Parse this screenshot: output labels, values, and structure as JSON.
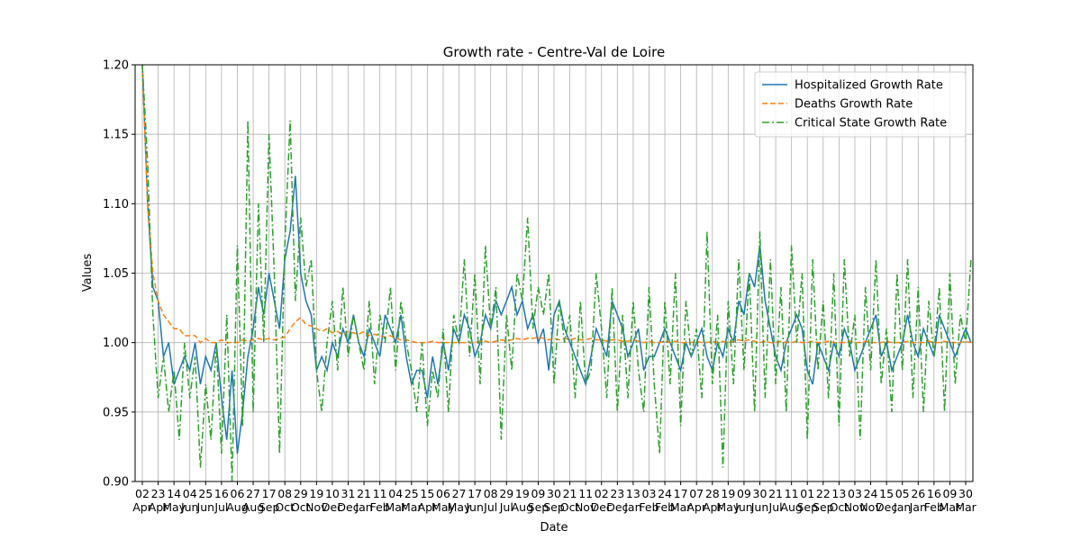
{
  "chart_data": {
    "type": "line",
    "title": "Growth rate - Centre-Val de Loire",
    "xlabel": "Date",
    "ylabel": "Values",
    "ylim": [
      0.9,
      1.2
    ],
    "yticks": [
      {
        "value": 0.9,
        "label": "0.90"
      },
      0.95,
      {
        "value": 1.0,
        "label": "1.00"
      },
      1.05,
      {
        "value": 1.1,
        "label": "1.10"
      },
      1.15,
      {
        "value": 1.2,
        "label": "1.20"
      }
    ],
    "grid": true,
    "legend": "upper right",
    "categories": [
      "02\nApr",
      null,
      null,
      "23\nApr",
      null,
      null,
      "14\nMay",
      null,
      null,
      "04\nJun",
      null,
      null,
      "25\nJun",
      null,
      null,
      "16\nJul",
      null,
      null,
      "06\nAug",
      null,
      null,
      "27\nAug",
      null,
      null,
      "17\nSep",
      null,
      null,
      "08\nOct",
      null,
      null,
      "29\nOct",
      null,
      null,
      "19\nNov",
      null,
      null,
      "10\nDec",
      null,
      null,
      "31\nDec",
      null,
      null,
      "21\nJan",
      null,
      null,
      "11\nFeb",
      null,
      null,
      "04\nMar",
      null,
      null,
      "25\nMar",
      null,
      null,
      "15\nApr",
      null,
      null,
      "06\nMay",
      null,
      null,
      "27\nMay",
      null,
      null,
      "17\nJun",
      null,
      null,
      "08\nJul",
      null,
      null,
      "29\nJul",
      null,
      null,
      "19\nAug",
      null,
      null,
      "09\nSep",
      null,
      null,
      "30\nSep",
      null,
      null,
      "21\nOct",
      null,
      null,
      "11\nNov",
      null,
      null,
      "02\nDec",
      null,
      null,
      "23\nDec",
      null,
      null,
      "13\nJan",
      null,
      null,
      "03\nFeb",
      null,
      null,
      "24\nFeb",
      null,
      null,
      "17\nMar",
      null,
      null,
      "07\nApr",
      null,
      null,
      "28\nApr",
      null,
      null,
      "19\nMay",
      null,
      null,
      "09\nJun",
      null,
      null,
      "30\nJun",
      null,
      null,
      "21\nJul",
      null,
      null,
      "11\nAug",
      null,
      null,
      "01\nSep",
      null,
      null,
      "22\nSep",
      null,
      null,
      "13\nOct",
      null,
      null,
      "03\nNov",
      null,
      null,
      "24\nNov",
      null,
      null,
      "15\nDec",
      null,
      null,
      "05\nJan",
      null,
      null,
      "26\nJan",
      null,
      null,
      "16\nFeb",
      null,
      null,
      "09\nMar",
      null,
      null,
      "30\nMar",
      null
    ],
    "series": [
      {
        "name": "Hospitalized Growth Rate",
        "color": "#1f77b4",
        "style": "solid",
        "values": [
          1.2,
          1.1,
          1.04,
          1.03,
          0.99,
          1.0,
          0.97,
          0.98,
          0.99,
          0.98,
          1.0,
          0.97,
          0.99,
          0.98,
          1.0,
          0.96,
          0.93,
          0.98,
          0.92,
          0.95,
          0.99,
          1.01,
          1.04,
          1.02,
          1.05,
          1.03,
          1.01,
          1.06,
          1.08,
          1.12,
          1.05,
          1.03,
          1.02,
          0.98,
          0.99,
          0.98,
          1.0,
          0.99,
          1.01,
          1.0,
          1.02,
          1.0,
          0.99,
          1.01,
          1.0,
          0.99,
          1.02,
          1.01,
          1.0,
          1.02,
          0.99,
          0.97,
          0.98,
          0.98,
          0.96,
          0.99,
          0.97,
          1.0,
          0.98,
          1.01,
          1.0,
          1.02,
          1.01,
          0.99,
          1.0,
          1.02,
          1.01,
          1.03,
          1.02,
          1.03,
          1.04,
          1.02,
          1.03,
          1.01,
          1.02,
          1.0,
          1.01,
          0.98,
          1.02,
          1.03,
          1.01,
          1.0,
          0.99,
          0.98,
          0.97,
          0.99,
          1.01,
          1.0,
          0.99,
          1.03,
          1.02,
          1.01,
          0.99,
          1.0,
          1.01,
          0.98,
          0.99,
          0.99,
          1.0,
          1.01,
          1.0,
          0.99,
          0.98,
          1.0,
          0.99,
          1.0,
          1.01,
          0.99,
          0.98,
          1.0,
          0.99,
          1.01,
          1.0,
          1.03,
          1.02,
          1.05,
          1.04,
          1.07,
          1.03,
          1.01,
          0.99,
          0.98,
          1.0,
          1.01,
          1.02,
          1.01,
          0.98,
          0.97,
          1.0,
          0.99,
          0.98,
          1.0,
          0.99,
          1.01,
          1.0,
          0.98,
          0.99,
          1.0,
          1.01,
          1.02,
          0.99,
          1.0,
          0.98,
          0.99,
          1.0,
          1.02,
          1.0,
          0.99,
          1.01,
          1.0,
          0.99,
          1.02,
          1.01,
          1.0,
          0.99,
          1.0,
          1.01,
          1.0
        ]
      },
      {
        "name": "Deaths Growth Rate",
        "color": "#ff7f0e",
        "style": "dashed",
        "values": [
          1.2,
          1.1,
          1.05,
          1.03,
          1.02,
          1.015,
          1.01,
          1.01,
          1.005,
          1.005,
          1.005,
          1.0,
          1.003,
          1.0,
          1.0,
          1.002,
          1.0,
          1.0,
          1.0,
          1.002,
          1.001,
          1.002,
          1.003,
          1.002,
          1.003,
          1.002,
          1.003,
          1.004,
          1.01,
          1.015,
          1.018,
          1.013,
          1.012,
          1.01,
          1.008,
          1.01,
          1.007,
          1.008,
          1.006,
          1.008,
          1.007,
          1.006,
          1.008,
          1.005,
          1.006,
          1.005,
          1.004,
          1.005,
          1.003,
          1.002,
          1.002,
          1.001,
          1.0,
          1.0,
          1.0,
          1.001,
          1.0,
          1.0,
          1.0,
          1.0,
          1.0,
          1.0,
          1.0,
          1.0,
          1.001,
          1.001,
          1.0,
          1.001,
          1.002,
          1.001,
          1.002,
          1.003,
          1.002,
          1.003,
          1.003,
          1.004,
          1.003,
          1.002,
          1.003,
          1.002,
          1.003,
          1.002,
          1.003,
          1.002,
          1.002,
          1.003,
          1.002,
          1.002,
          1.001,
          1.002,
          1.002,
          1.001,
          1.001,
          1.002,
          1.001,
          1.0,
          1.001,
          1.0,
          1.0,
          1.001,
          1.0,
          1.001,
          1.0,
          1.0,
          1.0,
          1.001,
          1.0,
          1.0,
          1.001,
          1.0,
          1.001,
          1.0,
          1.001,
          1.002,
          1.001,
          1.002,
          1.001,
          1.0,
          1.001,
          1.0,
          1.0,
          1.001,
          1.0,
          1.0,
          1.001,
          1.0,
          1.0,
          1.001,
          1.0,
          1.0,
          1.001,
          1.0,
          1.0,
          1.0,
          1.001,
          1.0,
          1.0,
          1.001,
          1.0,
          1.0,
          1.0,
          1.001,
          1.0,
          1.0,
          1.0,
          1.001,
          1.0,
          1.0,
          1.0,
          1.001,
          1.0,
          1.0,
          1.001,
          1.0,
          1.0,
          1.0,
          1.001,
          1.0
        ]
      },
      {
        "name": "Critical State Growth Rate",
        "color": "#2ca02c",
        "style": "dashdot",
        "values": [
          1.2,
          1.13,
          1.02,
          0.96,
          0.99,
          0.95,
          0.98,
          0.93,
          1.0,
          0.96,
          0.99,
          0.91,
          0.97,
          0.93,
          1.0,
          0.92,
          1.02,
          0.9,
          1.07,
          0.94,
          1.16,
          0.95,
          1.1,
          1.0,
          1.15,
          1.05,
          0.92,
          1.07,
          1.16,
          1.03,
          1.09,
          1.04,
          1.06,
          0.98,
          0.95,
          1.0,
          1.03,
          0.98,
          1.04,
          0.99,
          1.02,
          1.0,
          0.98,
          1.03,
          0.97,
          1.02,
          1.0,
          1.04,
          0.98,
          1.03,
          1.0,
          0.98,
          0.95,
          1.0,
          0.94,
          0.98,
          0.96,
          1.01,
          0.95,
          1.02,
          1.0,
          1.06,
          0.99,
          1.05,
          0.97,
          1.07,
          1.01,
          1.04,
          0.93,
          1.02,
          0.98,
          1.05,
          1.03,
          1.09,
          1.01,
          1.04,
          1.02,
          1.05,
          0.97,
          1.03,
          1.0,
          1.02,
          0.96,
          1.03,
          0.97,
          0.98,
          1.05,
          1.01,
          0.96,
          1.04,
          0.95,
          1.02,
          0.96,
          1.03,
          0.98,
          0.95,
          1.04,
          0.97,
          0.92,
          1.03,
          0.97,
          1.05,
          0.94,
          1.03,
          0.99,
          1.01,
          0.96,
          1.08,
          0.97,
          1.02,
          0.91,
          1.03,
          0.97,
          1.06,
          0.98,
          1.05,
          0.95,
          1.08,
          0.96,
          1.06,
          0.97,
          1.04,
          0.95,
          1.07,
          1.0,
          1.05,
          0.93,
          1.06,
          0.98,
          1.03,
          0.96,
          1.05,
          0.94,
          1.06,
          0.99,
          1.02,
          0.93,
          1.04,
          0.98,
          1.06,
          0.97,
          1.01,
          0.95,
          1.05,
          0.98,
          1.06,
          0.96,
          1.04,
          0.95,
          1.03,
          0.99,
          1.04,
          0.95,
          1.05,
          0.97,
          1.02,
          1.0,
          1.06
        ]
      }
    ]
  }
}
